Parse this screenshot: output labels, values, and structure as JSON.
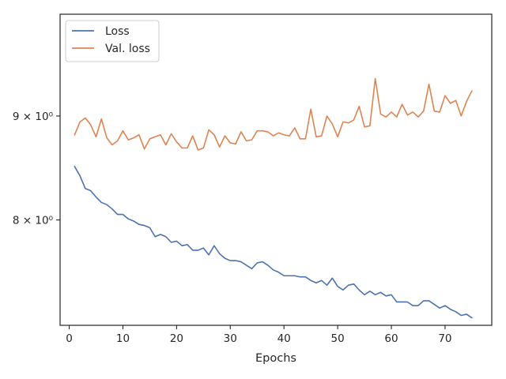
{
  "chart_data": {
    "type": "line",
    "title": "",
    "xlabel": "Epochs",
    "ylabel": "",
    "y_scale": "log",
    "grid": false,
    "legend_position": "top-left",
    "xlim": [
      -1.7,
      78.7
    ],
    "ylim": [
      7.1,
      10.1
    ],
    "x_ticks": [
      0,
      10,
      20,
      30,
      40,
      50,
      60,
      70
    ],
    "x_tick_labels": [
      "0",
      "10",
      "20",
      "30",
      "40",
      "50",
      "60",
      "70"
    ],
    "y_ticks": [
      8,
      9
    ],
    "y_tick_labels": [
      "8 × 10⁰",
      "9 × 10⁰"
    ],
    "x": [
      1,
      2,
      3,
      4,
      5,
      6,
      7,
      8,
      9,
      10,
      11,
      12,
      13,
      14,
      15,
      16,
      17,
      18,
      19,
      20,
      21,
      22,
      23,
      24,
      25,
      26,
      27,
      28,
      29,
      30,
      31,
      32,
      33,
      34,
      35,
      36,
      37,
      38,
      39,
      40,
      41,
      42,
      43,
      44,
      45,
      46,
      47,
      48,
      49,
      50,
      51,
      52,
      53,
      54,
      55,
      56,
      57,
      58,
      59,
      60,
      61,
      62,
      63,
      64,
      65,
      66,
      67,
      68,
      69,
      70,
      71,
      72,
      73,
      74,
      75
    ],
    "series": [
      {
        "name": "Loss",
        "color": "#4c72b0",
        "values": [
          8.5,
          8.41,
          8.29,
          8.27,
          8.21,
          8.16,
          8.14,
          8.1,
          8.05,
          8.05,
          8.01,
          7.99,
          7.96,
          7.95,
          7.93,
          7.85,
          7.87,
          7.85,
          7.8,
          7.81,
          7.77,
          7.78,
          7.73,
          7.73,
          7.75,
          7.69,
          7.77,
          7.7,
          7.66,
          7.64,
          7.64,
          7.63,
          7.6,
          7.57,
          7.62,
          7.63,
          7.6,
          7.56,
          7.54,
          7.51,
          7.51,
          7.51,
          7.5,
          7.5,
          7.47,
          7.45,
          7.47,
          7.43,
          7.49,
          7.42,
          7.39,
          7.43,
          7.44,
          7.39,
          7.35,
          7.38,
          7.35,
          7.37,
          7.34,
          7.35,
          7.29,
          7.29,
          7.29,
          7.26,
          7.26,
          7.3,
          7.3,
          7.27,
          7.24,
          7.26,
          7.23,
          7.21,
          7.18,
          7.19,
          7.16
        ]
      },
      {
        "name": "Val. loss",
        "color": "#dd8452",
        "values": [
          8.81,
          8.94,
          8.98,
          8.91,
          8.79,
          8.97,
          8.78,
          8.71,
          8.75,
          8.85,
          8.76,
          8.78,
          8.81,
          8.67,
          8.77,
          8.79,
          8.81,
          8.71,
          8.82,
          8.74,
          8.68,
          8.68,
          8.8,
          8.66,
          8.68,
          8.86,
          8.81,
          8.69,
          8.8,
          8.73,
          8.72,
          8.84,
          8.75,
          8.76,
          8.85,
          8.85,
          8.84,
          8.8,
          8.83,
          8.81,
          8.8,
          8.88,
          8.77,
          8.77,
          9.07,
          8.79,
          8.8,
          9.0,
          8.92,
          8.79,
          8.94,
          8.93,
          8.96,
          9.1,
          8.89,
          8.9,
          9.39,
          9.02,
          8.99,
          9.04,
          8.99,
          9.12,
          9.01,
          9.04,
          8.99,
          9.05,
          9.33,
          9.05,
          9.04,
          9.21,
          9.13,
          9.16,
          9.0,
          9.15,
          9.26
        ]
      }
    ]
  }
}
